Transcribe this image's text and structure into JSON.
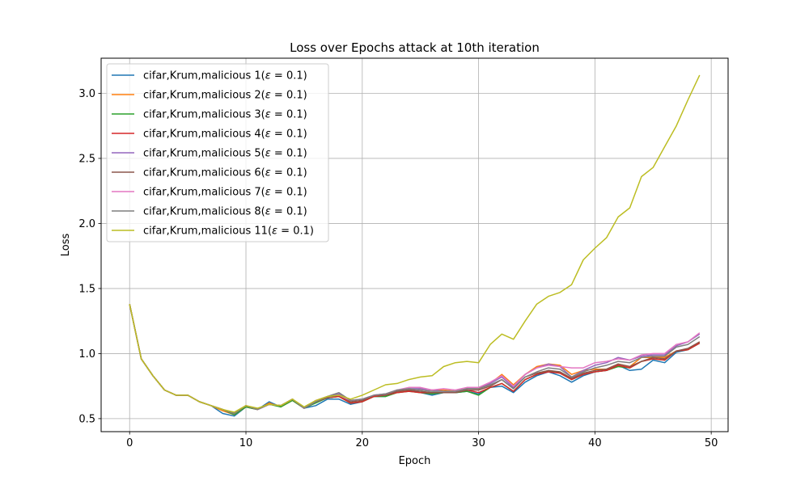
{
  "chart_data": {
    "type": "line",
    "title": "Loss over Epochs attack at 10th iteration",
    "xlabel": "Epoch",
    "ylabel": "Loss",
    "xlim": [
      -2.45,
      51.45
    ],
    "ylim": [
      0.4,
      3.27
    ],
    "xticks": [
      0,
      10,
      20,
      30,
      40,
      50
    ],
    "xtick_labels": [
      "0",
      "10",
      "20",
      "30",
      "40",
      "50"
    ],
    "yticks": [
      0.5,
      1.0,
      1.5,
      2.0,
      2.5,
      3.0
    ],
    "ytick_labels": [
      "0.5",
      "1.0",
      "1.5",
      "2.0",
      "2.5",
      "3.0"
    ],
    "grid": true,
    "legend_position": "upper-left",
    "x": [
      0,
      1,
      2,
      3,
      4,
      5,
      6,
      7,
      8,
      9,
      10,
      11,
      12,
      13,
      14,
      15,
      16,
      17,
      18,
      19,
      20,
      21,
      22,
      23,
      24,
      25,
      26,
      27,
      28,
      29,
      30,
      31,
      32,
      33,
      34,
      35,
      36,
      37,
      38,
      39,
      40,
      41,
      42,
      43,
      44,
      45,
      46,
      47,
      48,
      49
    ],
    "series": [
      {
        "name": "cifar,Krum,malicious 1",
        "eps": "0.1",
        "color": "#1f77b4",
        "values": [
          1.38,
          0.96,
          0.83,
          0.72,
          0.68,
          0.68,
          0.63,
          0.6,
          0.54,
          0.52,
          0.59,
          0.57,
          0.63,
          0.59,
          0.64,
          0.58,
          0.6,
          0.65,
          0.65,
          0.61,
          0.63,
          0.67,
          0.67,
          0.71,
          0.72,
          0.7,
          0.68,
          0.7,
          0.7,
          0.71,
          0.69,
          0.74,
          0.75,
          0.7,
          0.78,
          0.83,
          0.86,
          0.83,
          0.78,
          0.83,
          0.86,
          0.87,
          0.91,
          0.87,
          0.88,
          0.95,
          0.93,
          1.01,
          1.03,
          1.08
        ]
      },
      {
        "name": "cifar,Krum,malicious 2",
        "eps": "0.1",
        "color": "#ff7f0e",
        "values": [
          1.38,
          0.96,
          0.83,
          0.72,
          0.68,
          0.68,
          0.63,
          0.6,
          0.56,
          0.53,
          0.59,
          0.57,
          0.62,
          0.59,
          0.64,
          0.58,
          0.63,
          0.66,
          0.67,
          0.62,
          0.63,
          0.67,
          0.68,
          0.71,
          0.72,
          0.73,
          0.72,
          0.72,
          0.71,
          0.73,
          0.73,
          0.77,
          0.84,
          0.76,
          0.84,
          0.9,
          0.92,
          0.91,
          0.84,
          0.87,
          0.88,
          0.88,
          0.92,
          0.9,
          0.97,
          0.97,
          0.97,
          1.02,
          1.03,
          1.09
        ]
      },
      {
        "name": "cifar,Krum,malicious 3",
        "eps": "0.1",
        "color": "#2ca02c",
        "values": [
          1.38,
          0.96,
          0.83,
          0.72,
          0.68,
          0.68,
          0.63,
          0.6,
          0.57,
          0.53,
          0.59,
          0.57,
          0.61,
          0.59,
          0.64,
          0.58,
          0.62,
          0.66,
          0.67,
          0.62,
          0.63,
          0.67,
          0.67,
          0.7,
          0.71,
          0.7,
          0.69,
          0.7,
          0.7,
          0.71,
          0.68,
          0.74,
          0.77,
          0.71,
          0.8,
          0.84,
          0.87,
          0.85,
          0.8,
          0.84,
          0.86,
          0.87,
          0.9,
          0.89,
          0.94,
          0.96,
          0.95,
          1.02,
          1.03,
          1.08
        ]
      },
      {
        "name": "cifar,Krum,malicious 4",
        "eps": "0.1",
        "color": "#d62728",
        "values": [
          1.38,
          0.96,
          0.83,
          0.72,
          0.68,
          0.68,
          0.63,
          0.6,
          0.57,
          0.54,
          0.6,
          0.57,
          0.61,
          0.6,
          0.65,
          0.58,
          0.63,
          0.66,
          0.67,
          0.62,
          0.63,
          0.67,
          0.68,
          0.7,
          0.71,
          0.7,
          0.7,
          0.7,
          0.7,
          0.72,
          0.7,
          0.74,
          0.77,
          0.71,
          0.8,
          0.84,
          0.86,
          0.85,
          0.8,
          0.84,
          0.86,
          0.87,
          0.91,
          0.89,
          0.94,
          0.96,
          0.95,
          1.02,
          1.03,
          1.08
        ]
      },
      {
        "name": "cifar,Krum,malicious 5",
        "eps": "0.1",
        "color": "#9467bd",
        "values": [
          1.38,
          0.96,
          0.83,
          0.72,
          0.68,
          0.68,
          0.63,
          0.6,
          0.57,
          0.54,
          0.6,
          0.57,
          0.61,
          0.6,
          0.65,
          0.58,
          0.63,
          0.67,
          0.69,
          0.64,
          0.65,
          0.68,
          0.69,
          0.72,
          0.73,
          0.73,
          0.72,
          0.71,
          0.71,
          0.73,
          0.74,
          0.77,
          0.82,
          0.74,
          0.84,
          0.89,
          0.92,
          0.9,
          0.82,
          0.87,
          0.91,
          0.93,
          0.97,
          0.95,
          0.98,
          0.99,
          0.99,
          1.06,
          1.09,
          1.15
        ]
      },
      {
        "name": "cifar,Krum,malicious 6",
        "eps": "0.1",
        "color": "#8c564b",
        "values": [
          1.38,
          0.96,
          0.83,
          0.72,
          0.68,
          0.68,
          0.63,
          0.6,
          0.57,
          0.54,
          0.6,
          0.57,
          0.61,
          0.6,
          0.65,
          0.58,
          0.63,
          0.66,
          0.68,
          0.63,
          0.64,
          0.68,
          0.68,
          0.71,
          0.72,
          0.71,
          0.7,
          0.7,
          0.7,
          0.72,
          0.72,
          0.75,
          0.8,
          0.73,
          0.82,
          0.85,
          0.87,
          0.86,
          0.81,
          0.85,
          0.87,
          0.88,
          0.92,
          0.9,
          0.94,
          0.97,
          0.96,
          1.02,
          1.04,
          1.09
        ]
      },
      {
        "name": "cifar,Krum,malicious 7",
        "eps": "0.1",
        "color": "#e377c2",
        "values": [
          1.38,
          0.96,
          0.83,
          0.72,
          0.68,
          0.68,
          0.63,
          0.6,
          0.57,
          0.54,
          0.6,
          0.57,
          0.61,
          0.6,
          0.65,
          0.58,
          0.64,
          0.67,
          0.68,
          0.64,
          0.65,
          0.68,
          0.69,
          0.72,
          0.74,
          0.74,
          0.72,
          0.73,
          0.72,
          0.74,
          0.74,
          0.78,
          0.83,
          0.75,
          0.84,
          0.89,
          0.91,
          0.9,
          0.89,
          0.89,
          0.93,
          0.94,
          0.96,
          0.95,
          0.99,
          1.0,
          1.0,
          1.07,
          1.09,
          1.16
        ]
      },
      {
        "name": "cifar,Krum,malicious 8",
        "eps": "0.1",
        "color": "#7f7f7f",
        "values": [
          1.38,
          0.96,
          0.83,
          0.72,
          0.68,
          0.68,
          0.63,
          0.6,
          0.57,
          0.54,
          0.6,
          0.57,
          0.61,
          0.6,
          0.65,
          0.58,
          0.63,
          0.67,
          0.7,
          0.64,
          0.65,
          0.68,
          0.69,
          0.72,
          0.73,
          0.72,
          0.71,
          0.71,
          0.71,
          0.73,
          0.73,
          0.76,
          0.8,
          0.73,
          0.82,
          0.86,
          0.89,
          0.88,
          0.82,
          0.86,
          0.89,
          0.91,
          0.94,
          0.93,
          0.97,
          0.98,
          0.98,
          1.05,
          1.07,
          1.13
        ]
      },
      {
        "name": "cifar,Krum,malicious 11",
        "eps": "0.1",
        "color": "#bcbd22",
        "values": [
          1.38,
          0.96,
          0.83,
          0.72,
          0.68,
          0.68,
          0.63,
          0.6,
          0.57,
          0.55,
          0.6,
          0.58,
          0.61,
          0.6,
          0.65,
          0.59,
          0.64,
          0.67,
          0.68,
          0.65,
          0.68,
          0.72,
          0.76,
          0.77,
          0.8,
          0.82,
          0.83,
          0.9,
          0.93,
          0.94,
          0.93,
          1.07,
          1.15,
          1.11,
          1.25,
          1.38,
          1.44,
          1.47,
          1.53,
          1.72,
          1.81,
          1.89,
          2.05,
          2.12,
          2.36,
          2.43,
          2.59,
          2.75,
          2.95,
          3.14
        ]
      }
    ]
  }
}
